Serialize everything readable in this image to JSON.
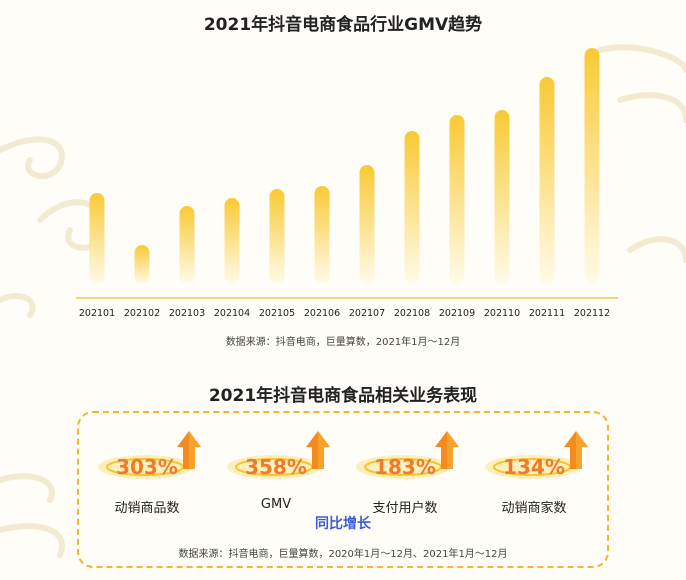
{
  "chart_title": "2021年抖音电商食品行业GMV趋势",
  "chart_source": "数据来源：抖音电商，巨量算数，2021年1月～12月",
  "chart_data": {
    "type": "bar",
    "title": "2021年抖音电商食品行业GMV趋势",
    "categories": [
      "202101",
      "202102",
      "202103",
      "202104",
      "202105",
      "202106",
      "202107",
      "202108",
      "202109",
      "202110",
      "202111",
      "202112"
    ],
    "values": [
      91,
      39,
      78,
      86,
      95,
      98,
      119,
      153,
      169,
      174,
      207,
      236
    ],
    "value_note_unit": "relative (no y-axis printed)",
    "ylim": [
      0,
      240
    ],
    "grid": false,
    "color_top": "#f9c934",
    "color_bottom": "#fffbea"
  },
  "section2_title": "2021年抖音电商食品相关业务表现",
  "metrics": [
    {
      "value": "303%",
      "label": "动销商品数"
    },
    {
      "value": "358%",
      "label": "GMV"
    },
    {
      "value": "183%",
      "label": "支付用户数"
    },
    {
      "value": "134%",
      "label": "动销商家数"
    }
  ],
  "yoy_label": "同比增长",
  "section2_source": "数据来源：抖音电商，巨量算数，2020年1月～12月、2021年1月～12月",
  "colors": {
    "accent_orange": "#f07a2a",
    "gold": "#f5b52e",
    "blue": "#3c5bd6"
  }
}
